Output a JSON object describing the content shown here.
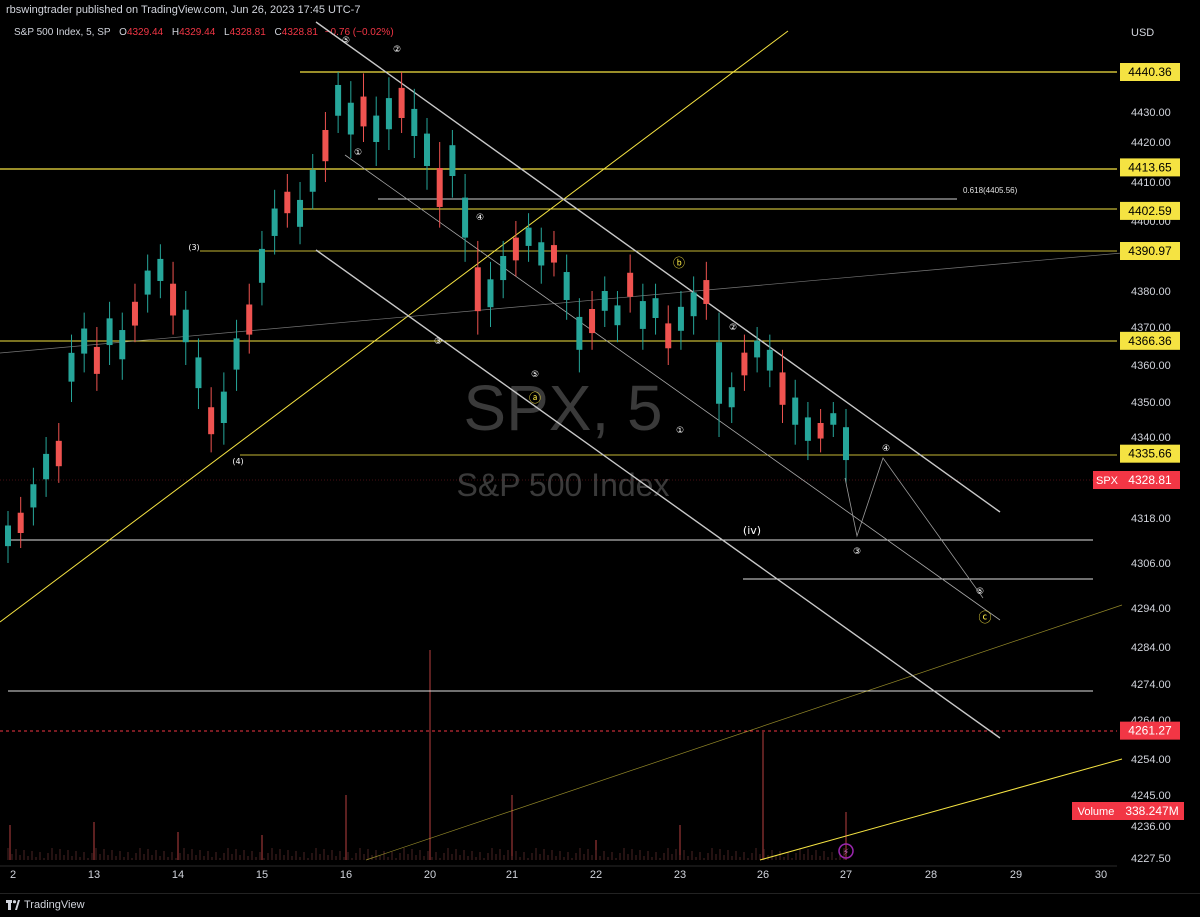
{
  "header": {
    "published": "rbswingtrader published on TradingView.com, Jun 26, 2023 17:45 UTC-7"
  },
  "legend": {
    "symbol": "S&P 500 Index, 5, SP",
    "open_label": "O",
    "open": "4329.44",
    "high_label": "H",
    "high": "4329.44",
    "low_label": "L",
    "low": "4328.81",
    "close_label": "C",
    "close": "4328.81",
    "change": "−0.76 (−0.02%)"
  },
  "currency": "USD",
  "watermark": {
    "ticker": "SPX, 5",
    "name": "S&P 500 Index"
  },
  "footer": {
    "brand": "TradingView",
    "tv_bottom": "TradingView"
  },
  "colors": {
    "up": "#26a69a",
    "down": "#ef5350",
    "yellow": "#f5e342",
    "white": "#c8c8c8",
    "red": "#f23645"
  },
  "chart_data": {
    "type": "candlestick",
    "x_ticks": [
      "2",
      "13",
      "14",
      "15",
      "16",
      "20",
      "21",
      "22",
      "23",
      "26",
      "27",
      "28",
      "29",
      "30"
    ],
    "y_ticks": [
      4227.5,
      4236.0,
      4245.0,
      4254.0,
      4264.0,
      4274.0,
      4284.0,
      4294.0,
      4306.0,
      4318.0,
      4340.0,
      4350.0,
      4360.0,
      4370.0,
      4380.0,
      4400.0,
      4410.0,
      4420.0,
      4430.0
    ],
    "ylim": [
      4227.5,
      4448
    ],
    "price_labels": [
      {
        "value": 4440.36,
        "text": "4440.36",
        "color": "#f5e342"
      },
      {
        "value": 4413.65,
        "text": "4413.65",
        "color": "#f5e342"
      },
      {
        "value": 4402.59,
        "text": "4402.59",
        "color": "#f5e342"
      },
      {
        "value": 4390.97,
        "text": "4390.97",
        "color": "#f5e342"
      },
      {
        "value": 4366.36,
        "text": "4366.36",
        "color": "#f5e342"
      },
      {
        "value": 4335.66,
        "text": "4335.66",
        "color": "#f5e342"
      },
      {
        "value": 4328.81,
        "text": "4328.81",
        "color": "#f23645",
        "tag": "SPX"
      },
      {
        "value": 4261.27,
        "text": "4261.27",
        "color": "#f23645"
      }
    ],
    "volume_label": {
      "tag": "Volume",
      "text": "338.247M"
    },
    "fib_label": "0.618(4405.56)",
    "series": [
      {
        "name": "",
        "points": [
          [
            4308,
            4318
          ],
          [
            4312,
            4322
          ],
          [
            4318,
            4330
          ],
          [
            4326,
            4338
          ],
          [
            4330,
            4342
          ],
          [
            4352,
            4366
          ],
          [
            4360,
            4372
          ],
          [
            4355,
            4368
          ],
          [
            4362,
            4375
          ],
          [
            4358,
            4372
          ],
          [
            4368,
            4380
          ],
          [
            4376,
            4388
          ],
          [
            4380,
            4391
          ],
          [
            4370,
            4386
          ],
          [
            4362,
            4378
          ],
          [
            4350,
            4365
          ],
          [
            4338,
            4352
          ],
          [
            4340,
            4356
          ],
          [
            4355,
            4370
          ],
          [
            4365,
            4380
          ],
          [
            4378,
            4395
          ],
          [
            4392,
            4406
          ],
          [
            4400,
            4410
          ],
          [
            4395,
            4408
          ],
          [
            4405,
            4415
          ],
          [
            4412,
            4428
          ],
          [
            4425,
            4440
          ],
          [
            4418,
            4436
          ],
          [
            4422,
            4438
          ],
          [
            4416,
            4432
          ],
          [
            4420,
            4437
          ],
          [
            4425,
            4440
          ],
          [
            4418,
            4434
          ],
          [
            4410,
            4426
          ],
          [
            4400,
            4418
          ],
          [
            4408,
            4422
          ],
          [
            4390,
            4410
          ],
          [
            4370,
            4392
          ],
          [
            4372,
            4386
          ],
          [
            4380,
            4392
          ],
          [
            4386,
            4398
          ],
          [
            4390,
            4400
          ],
          [
            4384,
            4396
          ],
          [
            4386,
            4395
          ],
          [
            4374,
            4388
          ],
          [
            4360,
            4376
          ],
          [
            4366,
            4378
          ],
          [
            4372,
            4382
          ],
          [
            4368,
            4378
          ],
          [
            4376,
            4388
          ],
          [
            4366,
            4380
          ],
          [
            4370,
            4380
          ],
          [
            4362,
            4374
          ],
          [
            4366,
            4378
          ],
          [
            4370,
            4382
          ],
          [
            4374,
            4386
          ],
          [
            4342,
            4372
          ],
          [
            4346,
            4356
          ],
          [
            4355,
            4366
          ],
          [
            4360,
            4368
          ],
          [
            4356,
            4366
          ],
          [
            4346,
            4362
          ],
          [
            4340,
            4354
          ],
          [
            4336,
            4348
          ],
          [
            4338,
            4346
          ],
          [
            4342,
            4348
          ],
          [
            4330,
            4346
          ]
        ]
      }
    ],
    "wave_labels": [
      "⑤",
      "②",
      "①",
      "④",
      "(3)",
      "③",
      "⑤",
      "ⓐ",
      "ⓑ",
      "②",
      "①",
      "④",
      "(iv)",
      "③",
      "⑤",
      "ⓒ",
      "(4)"
    ]
  }
}
